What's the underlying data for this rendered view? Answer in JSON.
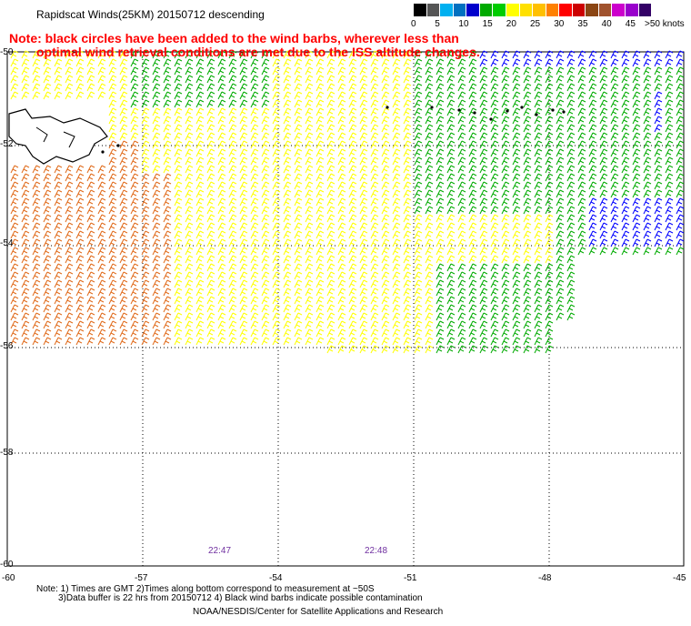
{
  "title": "Rapidscat Winds(25KM) 20150712 descending",
  "note_line1": "Note: black circles have been added to the wind barbs, wherever less than",
  "note_line2": "optimal wind retrieval conditions are met due to the ISS altitude changes.",
  "legend": {
    "colors": [
      "#000000",
      "#555555",
      "#00b0f0",
      "#0070c0",
      "#0000cc",
      "#00aa00",
      "#00cc00",
      "#ffff00",
      "#ffe000",
      "#ffc000",
      "#ff8000",
      "#ff0000",
      "#cc0000",
      "#8b4513",
      "#a0522d",
      "#cc00cc",
      "#9900cc",
      "#330066"
    ],
    "labels": [
      {
        "text": "0",
        "value": 0
      },
      {
        "text": "5",
        "value": 5
      },
      {
        "text": "10",
        "value": 10
      },
      {
        "text": "15",
        "value": 15
      },
      {
        "text": "20",
        "value": 20
      },
      {
        "text": "25",
        "value": 25
      },
      {
        "text": "30",
        "value": 30
      },
      {
        "text": "35",
        "value": 35
      },
      {
        "text": "40",
        "value": 40
      },
      {
        "text": "45",
        "value": 45
      },
      {
        "text": ">50 knots",
        "value": 50
      }
    ]
  },
  "axes": {
    "x_labels": [
      "-60",
      "-57",
      "-54",
      "-51",
      "-48",
      "-45"
    ],
    "y_labels": [
      "-50",
      "-52",
      "-54",
      "-56",
      "-58",
      "-60"
    ]
  },
  "times": [
    "22:47",
    "22:48"
  ],
  "footer": {
    "line1": "Note: 1) Times are GMT 2)Times along bottom correspond to measurement at ~50S",
    "line2": "3)Data buffer is 22 hrs from 20150712 4) Black wind barbs indicate possible contamination",
    "line3": "NOAA/NESDIS/Center for Satellite Applications and Research"
  },
  "barb_colors": {
    "orange": "#e06a1a",
    "yellow": "#ffff00",
    "green": "#00aa00",
    "blue": "#0000ff",
    "land": "#000000"
  }
}
